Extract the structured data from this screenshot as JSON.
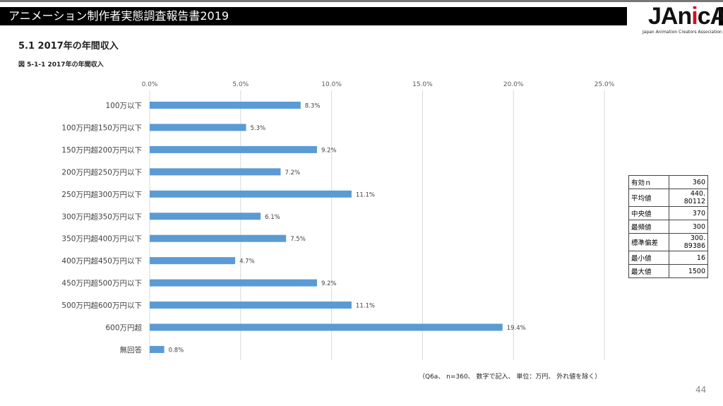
{
  "header": {
    "title": "アニメーション制作者実態調査報告書2019",
    "logo": "JAniCA",
    "logo_sub": "Japan Animation Creators Association"
  },
  "section_title": "5.1  2017年の年間収入",
  "figure_title": "図 5-1-1  2017年の年間収入",
  "chart_data": {
    "type": "bar",
    "orientation": "horizontal",
    "categories": [
      "100万以下",
      "100万円超150万円以下",
      "150万円超200万円以下",
      "200万円超250万円以下",
      "250万円超300万円以下",
      "300万円超350万円以下",
      "350万円超400万円以下",
      "400万円超450万円以下",
      "450万円超500万円以下",
      "500万円超600万円以下",
      "600万円超",
      "無回答"
    ],
    "values": [
      8.3,
      5.3,
      9.2,
      7.2,
      11.1,
      6.1,
      7.5,
      4.7,
      9.2,
      11.1,
      19.4,
      0.8
    ],
    "data_labels": [
      "8.3%",
      "5.3%",
      "9.2%",
      "7.2%",
      "11.1%",
      "6.1%",
      "7.5%",
      "4.7%",
      "9.2%",
      "11.1%",
      "19.4%",
      "0.8%"
    ],
    "xlim": [
      0,
      25
    ],
    "x_ticks": [
      "0.0%",
      "5.0%",
      "10.0%",
      "15.0%",
      "20.0%",
      "25.0%"
    ],
    "grid": true,
    "bar_color": "#5b9bd5"
  },
  "stats": [
    {
      "label": "有効ｎ",
      "value": "360"
    },
    {
      "label": "平均値",
      "value": "440. 80112"
    },
    {
      "label": "中央値",
      "value": "370"
    },
    {
      "label": "最頻値",
      "value": "300"
    },
    {
      "label": "標準偏差",
      "value": "300. 89386"
    },
    {
      "label": "最小値",
      "value": "16"
    },
    {
      "label": "最大値",
      "value": "1500"
    }
  ],
  "note": "（Q6a、 n=360、 数字で記入、 単位：万円、 外れ値を除く）",
  "page_number": "44"
}
